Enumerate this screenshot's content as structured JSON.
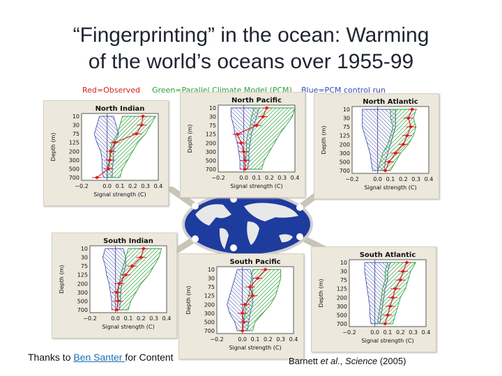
{
  "slide": {
    "title_line1": "“Fingerprinting” in the ocean: Warming",
    "title_line2": "of the world’s oceans over 1955-99"
  },
  "legend": {
    "observed": "Red=Observed",
    "model": "Green=Parallel Climate Model (PCM)",
    "control": "Blue=PCM control run"
  },
  "colors": {
    "observed": "#d42020",
    "model": "#2e9e3a",
    "control": "#4a55b0",
    "panel_bg": "#ece8dc"
  },
  "credit": {
    "prefix": "Thanks to ",
    "link_text": "Ben Santer ",
    "suffix": "for Content"
  },
  "citation": {
    "authors": "Barnett ",
    "etal": "et al",
    "sep": "., ",
    "journal": "Science",
    "year": " (2005)"
  },
  "chart_data": [
    {
      "type": "line",
      "title": "North Indian",
      "xlabel": "Signal strength (C)",
      "ylabel": "Depth (m)",
      "xlim": [
        -0.2,
        0.4
      ],
      "xticks": [
        "−0.2",
        "0.0",
        "0.1",
        "0.2",
        "0.3",
        "0.4"
      ],
      "xtick_values": [
        -0.2,
        0.0,
        0.1,
        0.2,
        0.3,
        0.4
      ],
      "depth_labels": [
        "10",
        "30",
        "75",
        "125",
        "200",
        "300",
        "500",
        "700"
      ],
      "observed": [
        0.28,
        0.27,
        0.23,
        0.06,
        0.03,
        0.02,
        0.01,
        -0.08
      ],
      "model_range": [
        [
          0.12,
          0.38
        ],
        [
          0.1,
          0.34
        ],
        [
          0.08,
          0.3
        ],
        [
          0.04,
          0.24
        ],
        [
          0.02,
          0.2
        ],
        [
          0.02,
          0.16
        ],
        [
          0.0,
          0.12
        ],
        [
          0.0,
          0.1
        ]
      ],
      "control_range": [
        [
          -0.06,
          0.05
        ],
        [
          -0.08,
          0.07
        ],
        [
          -0.1,
          0.09
        ],
        [
          -0.08,
          0.06
        ],
        [
          -0.05,
          0.05
        ],
        [
          -0.04,
          0.05
        ],
        [
          -0.04,
          0.04
        ],
        [
          -0.03,
          0.04
        ]
      ]
    },
    {
      "type": "line",
      "title": "North Pacific",
      "xlabel": "Signal strength (C)",
      "ylabel": "Depth (m)",
      "xlim": [
        -0.2,
        0.4
      ],
      "xticks": [
        "−0.2",
        "0.0",
        "0.1",
        "0.2",
        "0.3",
        "0.4"
      ],
      "xtick_values": [
        -0.2,
        0.0,
        0.1,
        0.2,
        0.3,
        0.4
      ],
      "depth_labels": [
        "10",
        "30",
        "75",
        "125",
        "200",
        "300",
        "500",
        "700"
      ],
      "observed": [
        0.18,
        0.15,
        0.1,
        -0.05,
        -0.02,
        0.0,
        0.01,
        0.01
      ],
      "model_range": [
        [
          0.08,
          0.4
        ],
        [
          0.06,
          0.38
        ],
        [
          0.05,
          0.33
        ],
        [
          0.03,
          0.28
        ],
        [
          0.02,
          0.24
        ],
        [
          0.02,
          0.2
        ],
        [
          0.01,
          0.16
        ],
        [
          0.01,
          0.14
        ]
      ],
      "control_range": [
        [
          -0.1,
          0.12
        ],
        [
          -0.1,
          0.1
        ],
        [
          -0.08,
          0.08
        ],
        [
          -0.07,
          0.06
        ],
        [
          -0.05,
          0.05
        ],
        [
          -0.04,
          0.04
        ],
        [
          -0.03,
          0.04
        ],
        [
          -0.03,
          0.03
        ]
      ]
    },
    {
      "type": "line",
      "title": "North Atlantic",
      "xlabel": "Signal strength (C)",
      "ylabel": "Depth (m)",
      "xlim": [
        -0.2,
        0.4
      ],
      "xticks": [
        "−0.2",
        "0.0",
        "0.1",
        "0.2",
        "0.3",
        "0.4"
      ],
      "xtick_values": [
        -0.2,
        0.0,
        0.1,
        0.2,
        0.3,
        0.4
      ],
      "depth_labels": [
        "10",
        "30",
        "75",
        "125",
        "200",
        "300",
        "500",
        "700"
      ],
      "observed": [
        0.27,
        0.24,
        0.26,
        0.23,
        0.2,
        0.14,
        0.09,
        0.06
      ],
      "model_range": [
        [
          0.1,
          0.3
        ],
        [
          0.1,
          0.28
        ],
        [
          0.12,
          0.3
        ],
        [
          0.1,
          0.28
        ],
        [
          0.08,
          0.24
        ],
        [
          0.04,
          0.18
        ],
        [
          0.02,
          0.14
        ],
        [
          0.0,
          0.1
        ]
      ],
      "control_range": [
        [
          -0.12,
          0.14
        ],
        [
          -0.12,
          0.14
        ],
        [
          -0.12,
          0.14
        ],
        [
          -0.1,
          0.12
        ],
        [
          -0.08,
          0.1
        ],
        [
          -0.06,
          0.08
        ],
        [
          -0.05,
          0.06
        ],
        [
          -0.04,
          0.05
        ]
      ]
    },
    {
      "type": "line",
      "title": "South Indian",
      "xlabel": "Signal strength (C)",
      "ylabel": "Depth (m)",
      "xlim": [
        -0.2,
        0.4
      ],
      "xticks": [
        "−0.2",
        "0.0",
        "0.1",
        "0.2",
        "0.3",
        "0.4"
      ],
      "xtick_values": [
        -0.2,
        0.0,
        0.1,
        0.2,
        0.3,
        0.4
      ],
      "depth_labels": [
        "10",
        "30",
        "75",
        "125",
        "200",
        "300",
        "500",
        "700"
      ],
      "observed": [
        0.22,
        0.2,
        0.13,
        0.08,
        0.03,
        0.01,
        0.02,
        0.01
      ],
      "model_range": [
        [
          0.1,
          0.36
        ],
        [
          0.08,
          0.34
        ],
        [
          0.06,
          0.3
        ],
        [
          0.04,
          0.26
        ],
        [
          0.03,
          0.2
        ],
        [
          0.02,
          0.16
        ],
        [
          0.02,
          0.12
        ],
        [
          0.01,
          0.1
        ]
      ],
      "control_range": [
        [
          -0.08,
          0.06
        ],
        [
          -0.1,
          0.08
        ],
        [
          -0.08,
          0.08
        ],
        [
          -0.07,
          0.06
        ],
        [
          -0.05,
          0.05
        ],
        [
          -0.04,
          0.04
        ],
        [
          -0.03,
          0.04
        ],
        [
          -0.03,
          0.03
        ]
      ]
    },
    {
      "type": "line",
      "title": "South Pacific",
      "xlabel": "Signal strength (C)",
      "ylabel": "Depth (m)",
      "xlim": [
        -0.2,
        0.4
      ],
      "xticks": [
        "−0.2",
        "0.0",
        "0.1",
        "0.2",
        "0.3",
        "0.4"
      ],
      "xtick_values": [
        -0.2,
        0.0,
        0.1,
        0.2,
        0.3,
        0.4
      ],
      "depth_labels": [
        "10",
        "30",
        "75",
        "125",
        "200",
        "300",
        "500",
        "700"
      ],
      "observed": [
        0.18,
        0.12,
        0.06,
        0.08,
        0.02,
        0.0,
        0.01,
        0.0
      ],
      "model_range": [
        [
          0.08,
          0.3
        ],
        [
          0.07,
          0.3
        ],
        [
          0.06,
          0.28
        ],
        [
          0.05,
          0.26
        ],
        [
          0.03,
          0.22
        ],
        [
          0.02,
          0.16
        ],
        [
          0.01,
          0.1
        ],
        [
          0.0,
          0.08
        ]
      ],
      "control_range": [
        [
          -0.04,
          0.06
        ],
        [
          -0.06,
          0.08
        ],
        [
          -0.08,
          0.08
        ],
        [
          -0.1,
          0.08
        ],
        [
          -0.12,
          0.08
        ],
        [
          -0.1,
          0.06
        ],
        [
          -0.06,
          0.05
        ],
        [
          -0.04,
          0.04
        ]
      ]
    },
    {
      "type": "line",
      "title": "South Atlantic",
      "xlabel": "Signal strength (C)",
      "ylabel": "Depth (m)",
      "xlim": [
        -0.2,
        0.4
      ],
      "xticks": [
        "−0.2",
        "0.0",
        "0.1",
        "0.2",
        "0.3",
        "0.4"
      ],
      "xtick_values": [
        -0.2,
        0.0,
        0.1,
        0.2,
        0.3,
        0.4
      ],
      "depth_labels": [
        "10",
        "30",
        "75",
        "125",
        "200",
        "300",
        "500",
        "700"
      ],
      "observed": [
        0.25,
        0.22,
        0.2,
        0.16,
        0.14,
        0.12,
        0.1,
        0.08
      ],
      "model_range": [
        [
          0.1,
          0.32
        ],
        [
          0.08,
          0.28
        ],
        [
          0.08,
          0.26
        ],
        [
          0.06,
          0.24
        ],
        [
          0.05,
          0.2
        ],
        [
          0.04,
          0.18
        ],
        [
          0.03,
          0.16
        ],
        [
          0.02,
          0.14
        ]
      ],
      "control_range": [
        [
          -0.08,
          0.12
        ],
        [
          -0.08,
          0.1
        ],
        [
          -0.07,
          0.1
        ],
        [
          -0.06,
          0.08
        ],
        [
          -0.05,
          0.07
        ],
        [
          -0.04,
          0.06
        ],
        [
          -0.04,
          0.05
        ],
        [
          -0.03,
          0.04
        ]
      ]
    }
  ]
}
